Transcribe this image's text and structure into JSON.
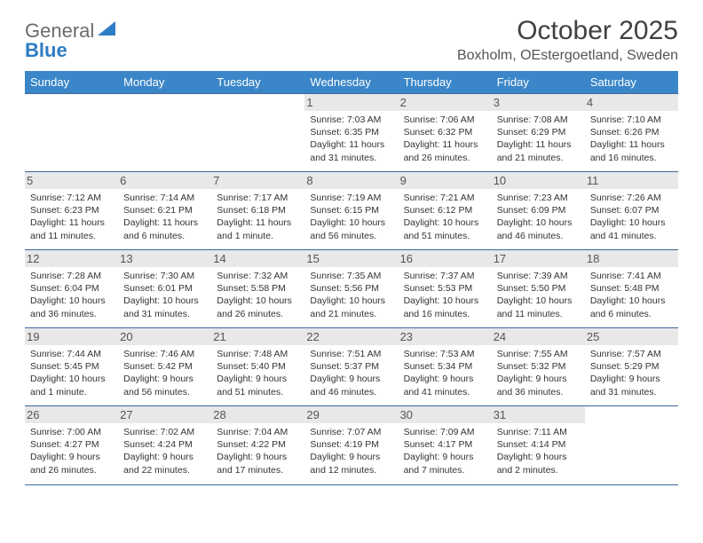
{
  "brand": {
    "line1": "General",
    "line2": "Blue"
  },
  "title": "October 2025",
  "location": "Boxholm, OEstergoetland, Sweden",
  "weekdays": [
    "Sunday",
    "Monday",
    "Tuesday",
    "Wednesday",
    "Thursday",
    "Friday",
    "Saturday"
  ],
  "colors": {
    "header_bg": "#3a86c8",
    "header_text": "#ffffff",
    "rule": "#3a6a9a",
    "daynum_bg": "#e8e8e8",
    "text": "#333333",
    "logo_grey": "#6b6b6b",
    "logo_blue": "#2d7dc4"
  },
  "weeks": [
    [
      null,
      null,
      null,
      {
        "n": "1",
        "sr": "7:03 AM",
        "ss": "6:35 PM",
        "dl": "11 hours and 31 minutes."
      },
      {
        "n": "2",
        "sr": "7:06 AM",
        "ss": "6:32 PM",
        "dl": "11 hours and 26 minutes."
      },
      {
        "n": "3",
        "sr": "7:08 AM",
        "ss": "6:29 PM",
        "dl": "11 hours and 21 minutes."
      },
      {
        "n": "4",
        "sr": "7:10 AM",
        "ss": "6:26 PM",
        "dl": "11 hours and 16 minutes."
      }
    ],
    [
      {
        "n": "5",
        "sr": "7:12 AM",
        "ss": "6:23 PM",
        "dl": "11 hours and 11 minutes."
      },
      {
        "n": "6",
        "sr": "7:14 AM",
        "ss": "6:21 PM",
        "dl": "11 hours and 6 minutes."
      },
      {
        "n": "7",
        "sr": "7:17 AM",
        "ss": "6:18 PM",
        "dl": "11 hours and 1 minute."
      },
      {
        "n": "8",
        "sr": "7:19 AM",
        "ss": "6:15 PM",
        "dl": "10 hours and 56 minutes."
      },
      {
        "n": "9",
        "sr": "7:21 AM",
        "ss": "6:12 PM",
        "dl": "10 hours and 51 minutes."
      },
      {
        "n": "10",
        "sr": "7:23 AM",
        "ss": "6:09 PM",
        "dl": "10 hours and 46 minutes."
      },
      {
        "n": "11",
        "sr": "7:26 AM",
        "ss": "6:07 PM",
        "dl": "10 hours and 41 minutes."
      }
    ],
    [
      {
        "n": "12",
        "sr": "7:28 AM",
        "ss": "6:04 PM",
        "dl": "10 hours and 36 minutes."
      },
      {
        "n": "13",
        "sr": "7:30 AM",
        "ss": "6:01 PM",
        "dl": "10 hours and 31 minutes."
      },
      {
        "n": "14",
        "sr": "7:32 AM",
        "ss": "5:58 PM",
        "dl": "10 hours and 26 minutes."
      },
      {
        "n": "15",
        "sr": "7:35 AM",
        "ss": "5:56 PM",
        "dl": "10 hours and 21 minutes."
      },
      {
        "n": "16",
        "sr": "7:37 AM",
        "ss": "5:53 PM",
        "dl": "10 hours and 16 minutes."
      },
      {
        "n": "17",
        "sr": "7:39 AM",
        "ss": "5:50 PM",
        "dl": "10 hours and 11 minutes."
      },
      {
        "n": "18",
        "sr": "7:41 AM",
        "ss": "5:48 PM",
        "dl": "10 hours and 6 minutes."
      }
    ],
    [
      {
        "n": "19",
        "sr": "7:44 AM",
        "ss": "5:45 PM",
        "dl": "10 hours and 1 minute."
      },
      {
        "n": "20",
        "sr": "7:46 AM",
        "ss": "5:42 PM",
        "dl": "9 hours and 56 minutes."
      },
      {
        "n": "21",
        "sr": "7:48 AM",
        "ss": "5:40 PM",
        "dl": "9 hours and 51 minutes."
      },
      {
        "n": "22",
        "sr": "7:51 AM",
        "ss": "5:37 PM",
        "dl": "9 hours and 46 minutes."
      },
      {
        "n": "23",
        "sr": "7:53 AM",
        "ss": "5:34 PM",
        "dl": "9 hours and 41 minutes."
      },
      {
        "n": "24",
        "sr": "7:55 AM",
        "ss": "5:32 PM",
        "dl": "9 hours and 36 minutes."
      },
      {
        "n": "25",
        "sr": "7:57 AM",
        "ss": "5:29 PM",
        "dl": "9 hours and 31 minutes."
      }
    ],
    [
      {
        "n": "26",
        "sr": "7:00 AM",
        "ss": "4:27 PM",
        "dl": "9 hours and 26 minutes."
      },
      {
        "n": "27",
        "sr": "7:02 AM",
        "ss": "4:24 PM",
        "dl": "9 hours and 22 minutes."
      },
      {
        "n": "28",
        "sr": "7:04 AM",
        "ss": "4:22 PM",
        "dl": "9 hours and 17 minutes."
      },
      {
        "n": "29",
        "sr": "7:07 AM",
        "ss": "4:19 PM",
        "dl": "9 hours and 12 minutes."
      },
      {
        "n": "30",
        "sr": "7:09 AM",
        "ss": "4:17 PM",
        "dl": "9 hours and 7 minutes."
      },
      {
        "n": "31",
        "sr": "7:11 AM",
        "ss": "4:14 PM",
        "dl": "9 hours and 2 minutes."
      },
      null
    ]
  ],
  "labels": {
    "sunrise": "Sunrise:",
    "sunset": "Sunset:",
    "daylight": "Daylight:"
  }
}
